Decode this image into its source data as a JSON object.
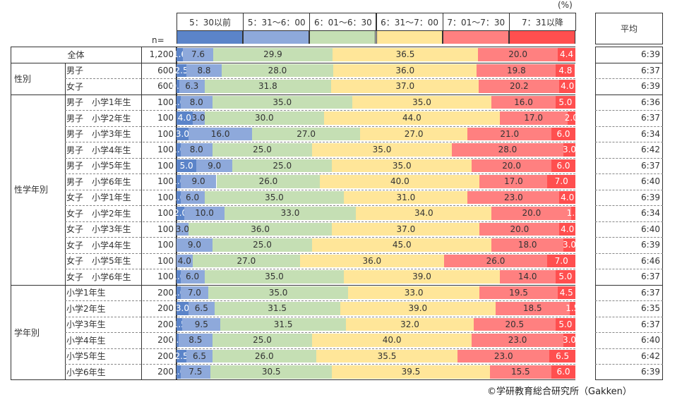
{
  "chart_data": {
    "type": "bar",
    "stacked": true,
    "orientation": "horizontal",
    "unit_label": "(%)",
    "n_label": "n=",
    "avg_header": "平均",
    "series": [
      {
        "name": "5：30以前",
        "color": "#5B84C9"
      },
      {
        "name": "5：31～6：00",
        "color": "#8EA9DB"
      },
      {
        "name": "6：01～6：30",
        "color": "#C5DFB4"
      },
      {
        "name": "6：31～7：00",
        "color": "#FFE699"
      },
      {
        "name": "7：01～7：30",
        "color": "#FF8080"
      },
      {
        "name": "7：31以降",
        "color": "#FF4F4F"
      }
    ],
    "groups": [
      {
        "label": "全体",
        "rows": [
          {
            "label": "",
            "n": "1,200",
            "values": [
              1.6,
              7.6,
              29.9,
              36.5,
              20.0,
              4.4
            ],
            "avg": "6:39"
          }
        ]
      },
      {
        "label": "性別",
        "rows": [
          {
            "label": "男子",
            "n": "600",
            "values": [
              2.5,
              8.8,
              28.0,
              36.0,
              19.8,
              4.8
            ],
            "avg": "6:37"
          },
          {
            "label": "女子",
            "n": "600",
            "values": [
              0.7,
              6.3,
              31.8,
              37.0,
              20.2,
              4.0
            ],
            "avg": "6:39"
          }
        ]
      },
      {
        "label": "性学年別",
        "rows": [
          {
            "label": "男子　小学1年生",
            "n": "100",
            "values": [
              1.0,
              8.0,
              35.0,
              35.0,
              16.0,
              5.0
            ],
            "avg": "6:36"
          },
          {
            "label": "男子　小学2年生",
            "n": "100",
            "values": [
              4.0,
              3.0,
              30.0,
              44.0,
              17.0,
              2.0
            ],
            "avg": "6:37"
          },
          {
            "label": "男子　小学3年生",
            "n": "100",
            "values": [
              3.0,
              16.0,
              27.0,
              27.0,
              21.0,
              6.0
            ],
            "avg": "6:34"
          },
          {
            "label": "男子　小学4年生",
            "n": "100",
            "values": [
              1.0,
              8.0,
              25.0,
              35.0,
              28.0,
              3.0
            ],
            "avg": "6:42"
          },
          {
            "label": "男子　小学5年生",
            "n": "100",
            "values": [
              5.0,
              9.0,
              25.0,
              35.0,
              20.0,
              6.0
            ],
            "avg": "6:37"
          },
          {
            "label": "男子　小学6年生",
            "n": "100",
            "values": [
              1.0,
              9.0,
              26.0,
              40.0,
              17.0,
              7.0
            ],
            "avg": "6:40"
          },
          {
            "label": "女子　小学1年生",
            "n": "100",
            "values": [
              1.0,
              6.0,
              35.0,
              31.0,
              23.0,
              4.0
            ],
            "avg": "6:39"
          },
          {
            "label": "女子　小学2年生",
            "n": "100",
            "values": [
              2.0,
              10.0,
              33.0,
              34.0,
              20.0,
              1.0
            ],
            "avg": "6:34"
          },
          {
            "label": "女子　小学3年生",
            "n": "100",
            "values": [
              0,
              3.0,
              36.0,
              37.0,
              20.0,
              4.0
            ],
            "avg": "6:40"
          },
          {
            "label": "女子　小学4年生",
            "n": "100",
            "values": [
              0,
              9.0,
              25.0,
              45.0,
              18.0,
              3.0
            ],
            "avg": "6:39"
          },
          {
            "label": "女子　小学5年生",
            "n": "100",
            "values": [
              0,
              4.0,
              27.0,
              36.0,
              26.0,
              7.0
            ],
            "avg": "6:46"
          },
          {
            "label": "女子　小学6年生",
            "n": "100",
            "values": [
              1.0,
              6.0,
              35.0,
              39.0,
              14.0,
              5.0
            ],
            "avg": "6:37"
          }
        ]
      },
      {
        "label": "学年別",
        "rows": [
          {
            "label": "小学1年生",
            "n": "200",
            "values": [
              1.0,
              7.0,
              35.0,
              33.0,
              19.5,
              4.5
            ],
            "avg": "6:37"
          },
          {
            "label": "小学2年生",
            "n": "200",
            "values": [
              3.0,
              6.5,
              31.5,
              39.0,
              18.5,
              1.5
            ],
            "avg": "6:35"
          },
          {
            "label": "小学3年生",
            "n": "200",
            "values": [
              1.5,
              9.5,
              31.5,
              32.0,
              20.5,
              5.0
            ],
            "avg": "6:37"
          },
          {
            "label": "小学4年生",
            "n": "200",
            "values": [
              0.5,
              8.5,
              25.0,
              40.0,
              23.0,
              3.0
            ],
            "avg": "6:40"
          },
          {
            "label": "小学5年生",
            "n": "200",
            "values": [
              2.5,
              6.5,
              26.0,
              35.5,
              23.0,
              6.5
            ],
            "avg": "6:42"
          },
          {
            "label": "小学6年生",
            "n": "200",
            "values": [
              1.0,
              7.5,
              30.5,
              39.5,
              15.5,
              6.0
            ],
            "avg": "6:39"
          }
        ]
      }
    ],
    "xlim": [
      0,
      100
    ]
  },
  "footer": {
    "copyright": "©学研教育総合研究所（Gakken）"
  }
}
